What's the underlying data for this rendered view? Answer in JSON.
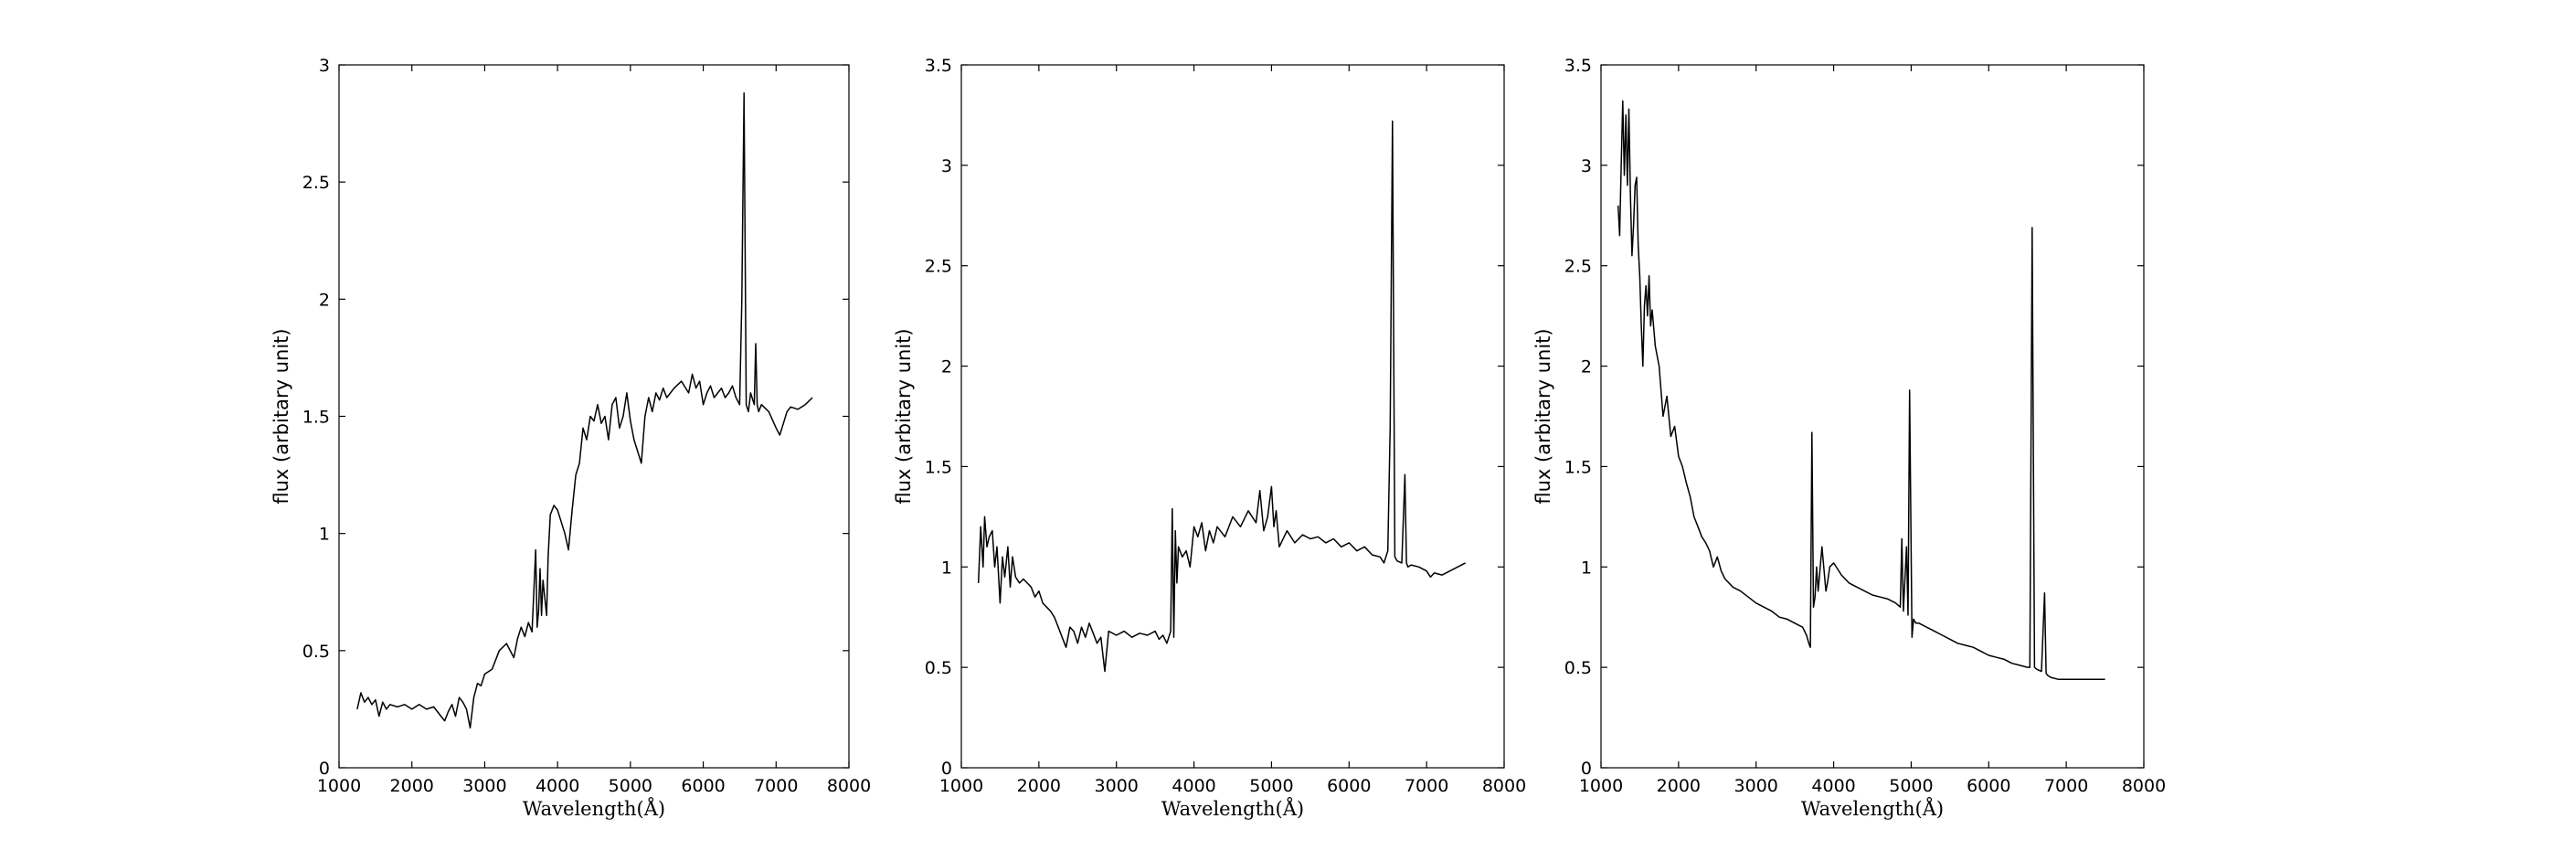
{
  "chart_data": [
    {
      "type": "line",
      "xlabel": "Wavelength(Å)",
      "ylabel": "flux (arbitary unit)",
      "xlim": [
        1000,
        8000
      ],
      "ylim": [
        0,
        3
      ],
      "xticks": [
        1000,
        2000,
        3000,
        4000,
        5000,
        6000,
        7000,
        8000
      ],
      "yticks": [
        0,
        0.5,
        1,
        1.5,
        2,
        2.5,
        3
      ],
      "ytick_labels": [
        "0",
        "0.5",
        "1",
        "1.5",
        "2",
        "2.5",
        "3"
      ],
      "grid": false,
      "series": [
        {
          "x": [
            1250,
            1300,
            1350,
            1400,
            1450,
            1500,
            1550,
            1600,
            1650,
            1700,
            1800,
            1900,
            2000,
            2100,
            2200,
            2300,
            2400,
            2450,
            2500,
            2550,
            2600,
            2650,
            2700,
            2750,
            2800,
            2850,
            2900,
            2950,
            3000,
            3100,
            3200,
            3300,
            3400,
            3450,
            3500,
            3550,
            3600,
            3650,
            3700,
            3720,
            3740,
            3760,
            3780,
            3800,
            3850,
            3870,
            3900,
            3950,
            4000,
            4050,
            4100,
            4150,
            4200,
            4250,
            4300,
            4350,
            4400,
            4450,
            4500,
            4550,
            4600,
            4650,
            4700,
            4750,
            4800,
            4850,
            4900,
            4950,
            5000,
            5050,
            5100,
            5150,
            5200,
            5250,
            5300,
            5350,
            5400,
            5450,
            5500,
            5600,
            5700,
            5800,
            5850,
            5900,
            5950,
            6000,
            6050,
            6100,
            6150,
            6200,
            6250,
            6300,
            6350,
            6400,
            6450,
            6500,
            6530,
            6560,
            6590,
            6620,
            6650,
            6700,
            6720,
            6740,
            6760,
            6800,
            6900,
            7000,
            7050,
            7100,
            7150,
            7200,
            7300,
            7400,
            7500
          ],
          "y": [
            0.25,
            0.32,
            0.28,
            0.3,
            0.27,
            0.29,
            0.22,
            0.28,
            0.25,
            0.27,
            0.26,
            0.27,
            0.25,
            0.27,
            0.25,
            0.26,
            0.22,
            0.2,
            0.24,
            0.27,
            0.22,
            0.3,
            0.28,
            0.25,
            0.17,
            0.3,
            0.36,
            0.35,
            0.4,
            0.42,
            0.5,
            0.53,
            0.47,
            0.55,
            0.6,
            0.56,
            0.62,
            0.58,
            0.93,
            0.6,
            0.67,
            0.85,
            0.65,
            0.8,
            0.65,
            0.9,
            1.08,
            1.12,
            1.1,
            1.05,
            1.0,
            0.93,
            1.1,
            1.25,
            1.3,
            1.45,
            1.4,
            1.5,
            1.48,
            1.55,
            1.47,
            1.5,
            1.4,
            1.55,
            1.58,
            1.45,
            1.5,
            1.6,
            1.48,
            1.4,
            1.35,
            1.3,
            1.5,
            1.58,
            1.52,
            1.6,
            1.57,
            1.62,
            1.58,
            1.62,
            1.65,
            1.6,
            1.68,
            1.62,
            1.65,
            1.55,
            1.6,
            1.63,
            1.58,
            1.6,
            1.62,
            1.58,
            1.6,
            1.63,
            1.58,
            1.55,
            2.0,
            2.88,
            1.55,
            1.52,
            1.6,
            1.55,
            1.81,
            1.55,
            1.52,
            1.55,
            1.52,
            1.45,
            1.42,
            1.47,
            1.52,
            1.54,
            1.53,
            1.55,
            1.58
          ]
        }
      ]
    },
    {
      "type": "line",
      "xlabel": "Wavelength(Å)",
      "ylabel": "flux (arbitary unit)",
      "xlim": [
        1000,
        8000
      ],
      "ylim": [
        0,
        3.5
      ],
      "xticks": [
        1000,
        2000,
        3000,
        4000,
        5000,
        6000,
        7000,
        8000
      ],
      "yticks": [
        0,
        0.5,
        1,
        1.5,
        2,
        2.5,
        3,
        3.5
      ],
      "ytick_labels": [
        "0",
        "0.5",
        "1",
        "1.5",
        "2",
        "2.5",
        "3",
        "3.5"
      ],
      "grid": false,
      "series": [
        {
          "x": [
            1220,
            1250,
            1280,
            1300,
            1330,
            1360,
            1400,
            1430,
            1460,
            1500,
            1530,
            1560,
            1600,
            1630,
            1660,
            1700,
            1750,
            1800,
            1850,
            1900,
            1950,
            2000,
            2050,
            2100,
            2150,
            2200,
            2250,
            2300,
            2350,
            2400,
            2450,
            2500,
            2550,
            2600,
            2650,
            2700,
            2750,
            2800,
            2850,
            2900,
            3000,
            3100,
            3200,
            3300,
            3400,
            3500,
            3550,
            3600,
            3650,
            3700,
            3720,
            3740,
            3760,
            3780,
            3800,
            3850,
            3900,
            3950,
            4000,
            4050,
            4100,
            4150,
            4200,
            4250,
            4300,
            4400,
            4500,
            4600,
            4700,
            4800,
            4850,
            4900,
            4950,
            5000,
            5030,
            5060,
            5100,
            5200,
            5300,
            5400,
            5500,
            5600,
            5700,
            5800,
            5900,
            6000,
            6100,
            6200,
            6300,
            6400,
            6450,
            6500,
            6530,
            6560,
            6590,
            6620,
            6680,
            6720,
            6740,
            6760,
            6800,
            6900,
            7000,
            7050,
            7100,
            7200,
            7300,
            7400,
            7500
          ],
          "y": [
            0.92,
            1.2,
            1.0,
            1.25,
            1.1,
            1.15,
            1.18,
            1.0,
            1.1,
            0.82,
            1.05,
            0.95,
            1.1,
            0.9,
            1.05,
            0.95,
            0.92,
            0.94,
            0.92,
            0.9,
            0.85,
            0.88,
            0.82,
            0.8,
            0.78,
            0.75,
            0.7,
            0.65,
            0.6,
            0.7,
            0.68,
            0.62,
            0.7,
            0.65,
            0.72,
            0.67,
            0.62,
            0.65,
            0.48,
            0.68,
            0.66,
            0.68,
            0.65,
            0.67,
            0.66,
            0.68,
            0.64,
            0.66,
            0.62,
            0.68,
            1.29,
            0.65,
            1.18,
            0.92,
            1.1,
            1.05,
            1.08,
            1.0,
            1.2,
            1.15,
            1.22,
            1.08,
            1.18,
            1.12,
            1.2,
            1.15,
            1.25,
            1.2,
            1.28,
            1.22,
            1.38,
            1.18,
            1.25,
            1.4,
            1.2,
            1.28,
            1.1,
            1.18,
            1.12,
            1.16,
            1.14,
            1.15,
            1.12,
            1.14,
            1.1,
            1.12,
            1.08,
            1.1,
            1.06,
            1.05,
            1.02,
            1.08,
            1.7,
            3.22,
            1.05,
            1.03,
            1.02,
            1.46,
            1.02,
            1.0,
            1.01,
            1.0,
            0.98,
            0.95,
            0.97,
            0.96,
            0.98,
            1.0,
            1.02
          ]
        }
      ]
    },
    {
      "type": "line",
      "xlabel": "Wavelength(Å)",
      "ylabel": "flux (arbitary unit)",
      "xlim": [
        1000,
        8000
      ],
      "ylim": [
        0,
        3.5
      ],
      "xticks": [
        1000,
        2000,
        3000,
        4000,
        5000,
        6000,
        7000,
        8000
      ],
      "yticks": [
        0,
        0.5,
        1,
        1.5,
        2,
        2.5,
        3,
        3.5
      ],
      "ytick_labels": [
        "0",
        "0.5",
        "1",
        "1.5",
        "2",
        "2.5",
        "3",
        "3.5"
      ],
      "grid": false,
      "series": [
        {
          "x": [
            1220,
            1240,
            1260,
            1280,
            1300,
            1320,
            1340,
            1360,
            1380,
            1400,
            1420,
            1440,
            1460,
            1480,
            1500,
            1520,
            1540,
            1560,
            1580,
            1600,
            1620,
            1640,
            1660,
            1700,
            1750,
            1800,
            1850,
            1900,
            1950,
            2000,
            2050,
            2100,
            2150,
            2200,
            2250,
            2300,
            2350,
            2400,
            2450,
            2500,
            2550,
            2600,
            2700,
            2800,
            2900,
            3000,
            3100,
            3200,
            3300,
            3400,
            3500,
            3600,
            3650,
            3680,
            3700,
            3720,
            3740,
            3760,
            3780,
            3800,
            3850,
            3900,
            3920,
            3950,
            4000,
            4100,
            4200,
            4300,
            4400,
            4500,
            4600,
            4700,
            4800,
            4860,
            4880,
            4900,
            4940,
            4960,
            4980,
            5010,
            5030,
            5060,
            5100,
            5200,
            5300,
            5400,
            5500,
            5600,
            5700,
            5800,
            5900,
            6000,
            6100,
            6200,
            6300,
            6400,
            6500,
            6530,
            6560,
            6590,
            6620,
            6680,
            6720,
            6740,
            6760,
            6800,
            6900,
            7000,
            7100,
            7200,
            7300,
            7400,
            7500
          ],
          "y": [
            2.8,
            2.65,
            3.0,
            3.32,
            2.95,
            3.25,
            2.9,
            3.28,
            2.85,
            2.55,
            2.7,
            2.9,
            2.94,
            2.6,
            2.45,
            2.2,
            2.0,
            2.3,
            2.4,
            2.25,
            2.45,
            2.2,
            2.28,
            2.1,
            2.0,
            1.75,
            1.85,
            1.65,
            1.7,
            1.55,
            1.5,
            1.42,
            1.35,
            1.25,
            1.2,
            1.15,
            1.12,
            1.08,
            1.0,
            1.05,
            0.98,
            0.94,
            0.9,
            0.88,
            0.85,
            0.82,
            0.8,
            0.78,
            0.75,
            0.74,
            0.72,
            0.7,
            0.66,
            0.62,
            0.6,
            1.67,
            0.8,
            0.85,
            1.0,
            0.88,
            1.1,
            0.88,
            0.92,
            1.0,
            1.02,
            0.96,
            0.92,
            0.9,
            0.88,
            0.86,
            0.85,
            0.84,
            0.82,
            0.8,
            1.14,
            0.78,
            1.1,
            0.76,
            1.88,
            0.65,
            0.74,
            0.72,
            0.72,
            0.7,
            0.68,
            0.66,
            0.64,
            0.62,
            0.61,
            0.6,
            0.58,
            0.56,
            0.55,
            0.54,
            0.52,
            0.51,
            0.5,
            0.5,
            2.69,
            0.5,
            0.49,
            0.48,
            0.87,
            0.47,
            0.46,
            0.45,
            0.44,
            0.44,
            0.44,
            0.44,
            0.44,
            0.44,
            0.44
          ]
        }
      ]
    }
  ]
}
